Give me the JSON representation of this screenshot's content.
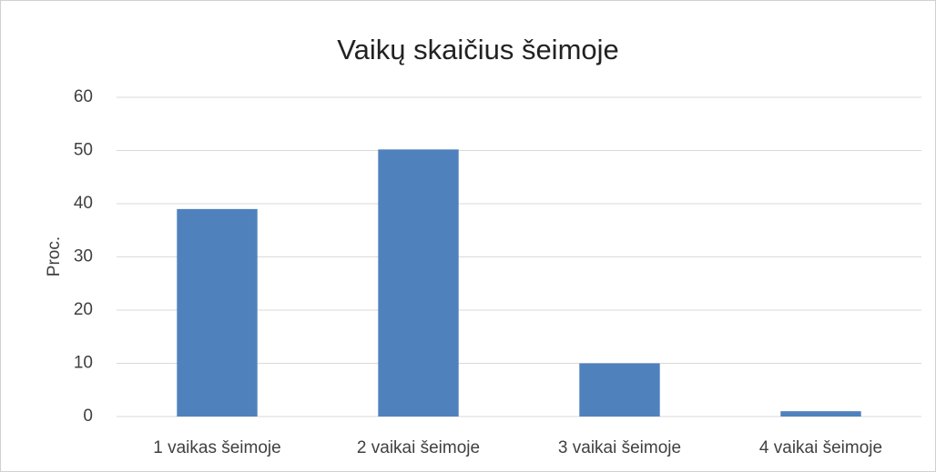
{
  "chart_data": {
    "type": "bar",
    "title": "Vaikų skaičius šeimoje",
    "ylabel": "Proc.",
    "categories": [
      "1 vaikas šeimoje",
      "2 vaikai šeimoje",
      "3 vaikai šeimoje",
      "4 vaikai šeimoje"
    ],
    "values": [
      39,
      50.2,
      10,
      1
    ],
    "color": "#4f81bd",
    "ylim": [
      0,
      60
    ],
    "yticks": [
      0,
      10,
      20,
      30,
      40,
      50,
      60
    ],
    "grid": true
  }
}
